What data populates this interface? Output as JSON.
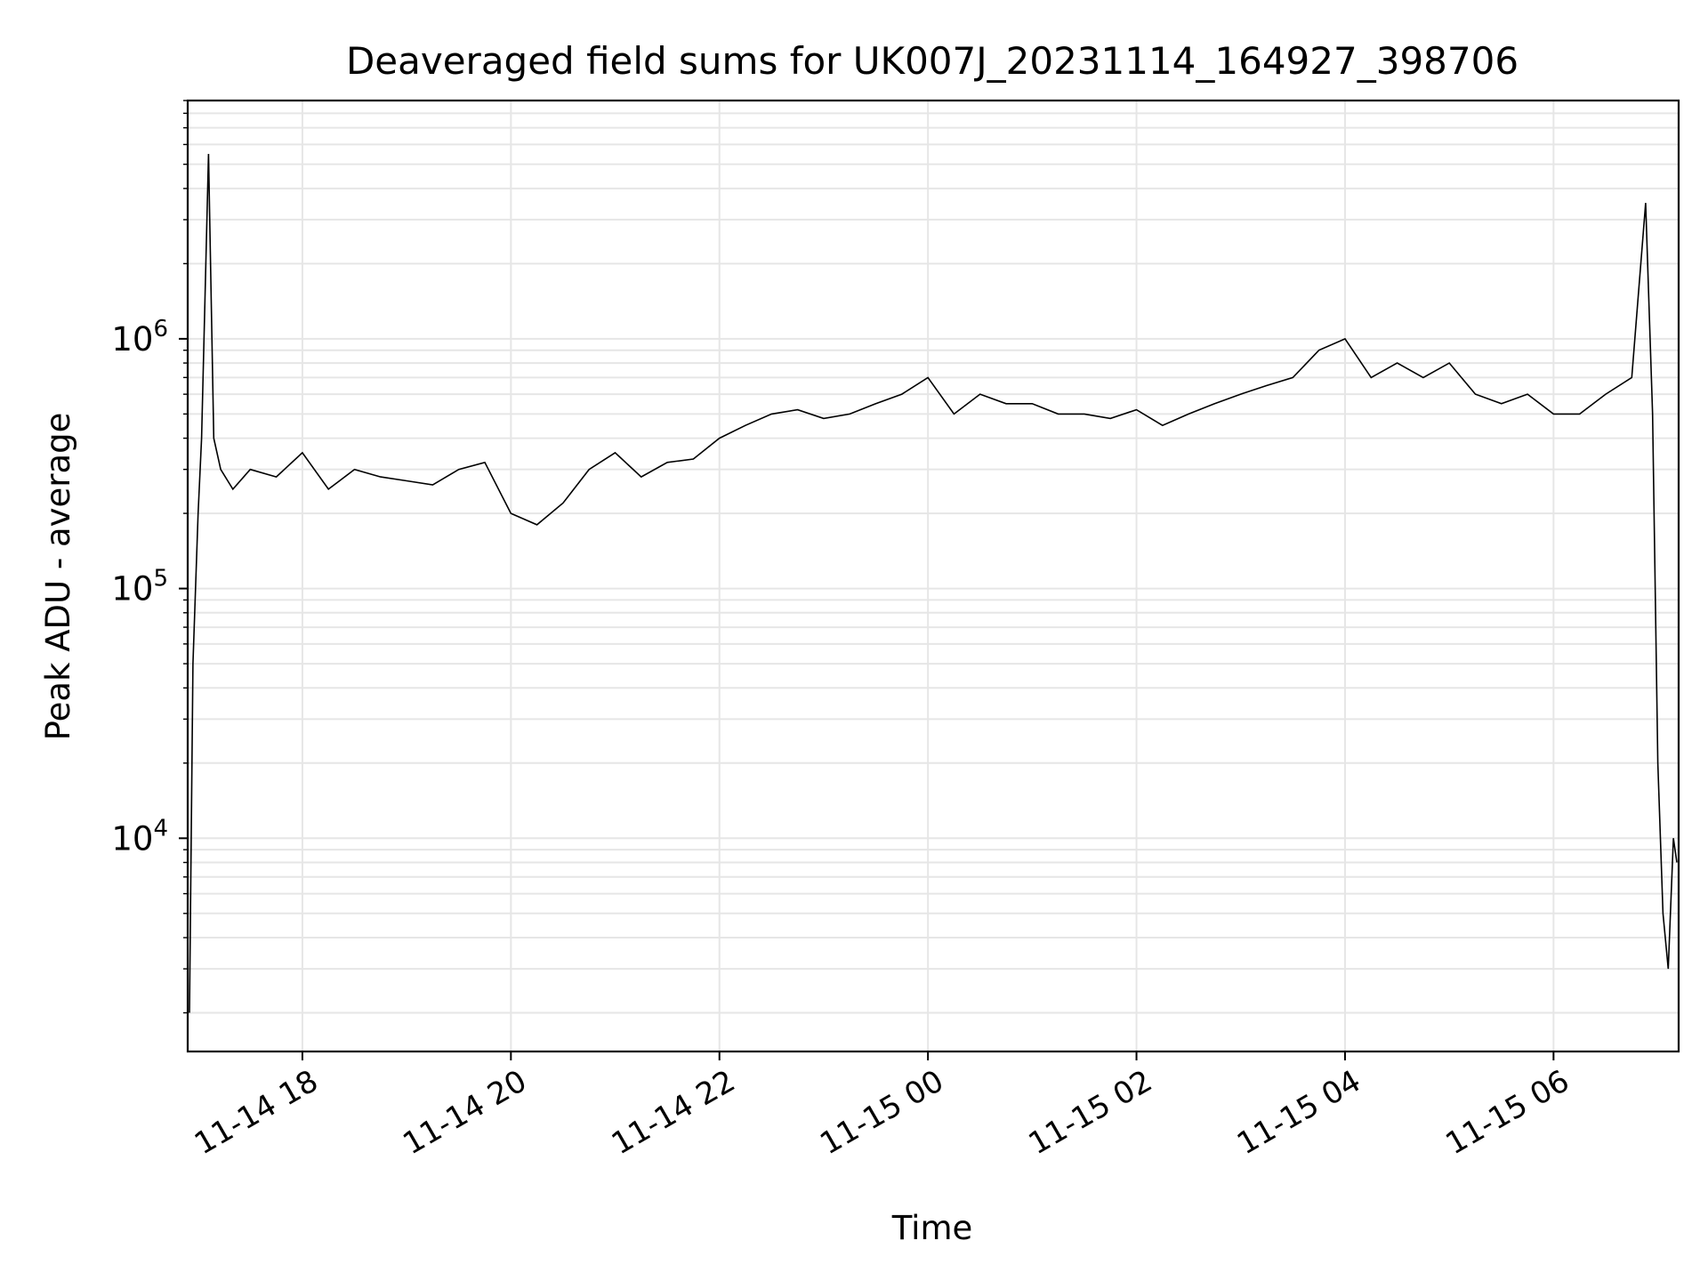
{
  "chart_data": {
    "type": "line",
    "title": "Deaveraged field sums for UK007J_20231114_164927_398706",
    "xlabel": "Time",
    "ylabel": "Peak ADU - average",
    "y_scale": "log",
    "xlim": [
      "2023-11-14 16:54",
      "2023-11-15 07:12"
    ],
    "ylim": [
      1400,
      9000000
    ],
    "x_ticks": [
      "11-14 18",
      "11-14 20",
      "11-14 22",
      "11-15 00",
      "11-15 02",
      "11-15 04",
      "11-15 06"
    ],
    "x_tick_values": [
      "2023-11-14 18:00",
      "2023-11-14 20:00",
      "2023-11-14 22:00",
      "2023-11-15 00:00",
      "2023-11-15 02:00",
      "2023-11-15 04:00",
      "2023-11-15 06:00"
    ],
    "y_ticks": [
      {
        "base": "10",
        "exp": "4",
        "value": 10000
      },
      {
        "base": "10",
        "exp": "5",
        "value": 100000
      },
      {
        "base": "10",
        "exp": "6",
        "value": 1000000
      }
    ],
    "grid": true,
    "line_color": "#000000",
    "grid_color": "#e6e6e6",
    "series": [
      {
        "x": [
          "2023-11-14 16:55",
          "2023-11-14 16:57",
          "2023-11-14 17:00",
          "2023-11-14 17:02",
          "2023-11-14 17:06",
          "2023-11-14 17:09",
          "2023-11-14 17:13",
          "2023-11-14 17:20",
          "2023-11-14 17:30",
          "2023-11-14 17:45",
          "2023-11-14 18:00",
          "2023-11-14 18:15",
          "2023-11-14 18:30",
          "2023-11-14 18:45",
          "2023-11-14 19:00",
          "2023-11-14 19:15",
          "2023-11-14 19:30",
          "2023-11-14 19:45",
          "2023-11-14 20:00",
          "2023-11-14 20:15",
          "2023-11-14 20:30",
          "2023-11-14 20:45",
          "2023-11-14 21:00",
          "2023-11-14 21:15",
          "2023-11-14 21:30",
          "2023-11-14 21:45",
          "2023-11-14 22:00",
          "2023-11-14 22:15",
          "2023-11-14 22:30",
          "2023-11-14 22:45",
          "2023-11-14 23:00",
          "2023-11-14 23:15",
          "2023-11-14 23:30",
          "2023-11-14 23:45",
          "2023-11-15 00:00",
          "2023-11-15 00:15",
          "2023-11-15 00:30",
          "2023-11-15 00:45",
          "2023-11-15 01:00",
          "2023-11-15 01:15",
          "2023-11-15 01:30",
          "2023-11-15 01:45",
          "2023-11-15 02:00",
          "2023-11-15 02:15",
          "2023-11-15 02:30",
          "2023-11-15 02:45",
          "2023-11-15 03:00",
          "2023-11-15 03:15",
          "2023-11-15 03:30",
          "2023-11-15 03:45",
          "2023-11-15 04:00",
          "2023-11-15 04:15",
          "2023-11-15 04:30",
          "2023-11-15 04:45",
          "2023-11-15 05:00",
          "2023-11-15 05:15",
          "2023-11-15 05:30",
          "2023-11-15 05:45",
          "2023-11-15 06:00",
          "2023-11-15 06:15",
          "2023-11-15 06:30",
          "2023-11-15 06:45",
          "2023-11-15 06:53",
          "2023-11-15 06:57",
          "2023-11-15 07:00",
          "2023-11-15 07:03",
          "2023-11-15 07:06",
          "2023-11-15 07:09",
          "2023-11-15 07:11"
        ],
        "y": [
          2000,
          50000,
          200000,
          400000,
          5500000,
          400000,
          300000,
          250000,
          300000,
          280000,
          350000,
          250000,
          300000,
          280000,
          270000,
          260000,
          300000,
          320000,
          200000,
          180000,
          220000,
          300000,
          350000,
          280000,
          320000,
          330000,
          400000,
          450000,
          500000,
          520000,
          480000,
          500000,
          550000,
          600000,
          700000,
          500000,
          600000,
          550000,
          550000,
          500000,
          500000,
          480000,
          520000,
          450000,
          500000,
          550000,
          600000,
          650000,
          700000,
          900000,
          1000000,
          700000,
          800000,
          700000,
          800000,
          600000,
          550000,
          600000,
          500000,
          500000,
          600000,
          700000,
          3500000,
          500000,
          20000,
          5000,
          3000,
          10000,
          8000
        ]
      }
    ]
  }
}
